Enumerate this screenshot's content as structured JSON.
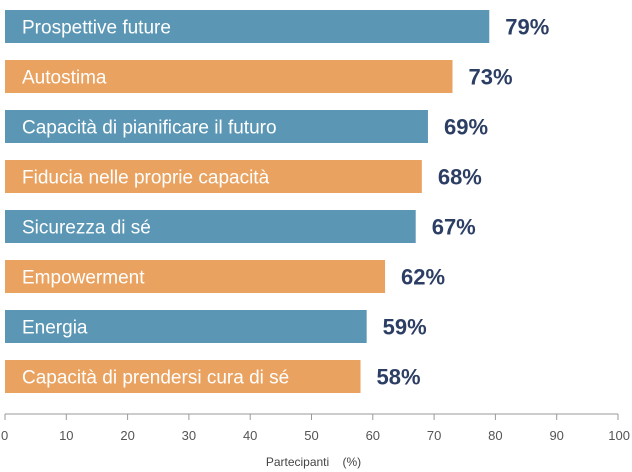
{
  "chart_data": {
    "type": "bar",
    "orientation": "horizontal",
    "categories": [
      "Prospettive future",
      "Autostima",
      "Capacità di pianificare il futuro",
      "Fiducia nelle proprie capacità",
      "Sicurezza di sé",
      "Empowerment",
      "Energia",
      "Capacità di prendersi cura di sé"
    ],
    "values": [
      79,
      73,
      69,
      68,
      67,
      62,
      59,
      58
    ],
    "value_labels": [
      "79%",
      "73%",
      "69%",
      "68%",
      "67%",
      "62%",
      "59%",
      "58%"
    ],
    "title": "",
    "xlabel": "Partecipanti    (%)",
    "ylabel": "",
    "xlim": [
      0,
      100
    ],
    "x_ticks": [
      0,
      10,
      20,
      30,
      40,
      50,
      60,
      70,
      80,
      90,
      100
    ],
    "x_tick_labels": [
      "0",
      "10",
      "20",
      "30",
      "40",
      "50",
      "60",
      "70",
      "80",
      "90",
      "100"
    ],
    "grid": false,
    "legend": "none",
    "colors": [
      "#5b97b5",
      "#e9a260"
    ]
  }
}
